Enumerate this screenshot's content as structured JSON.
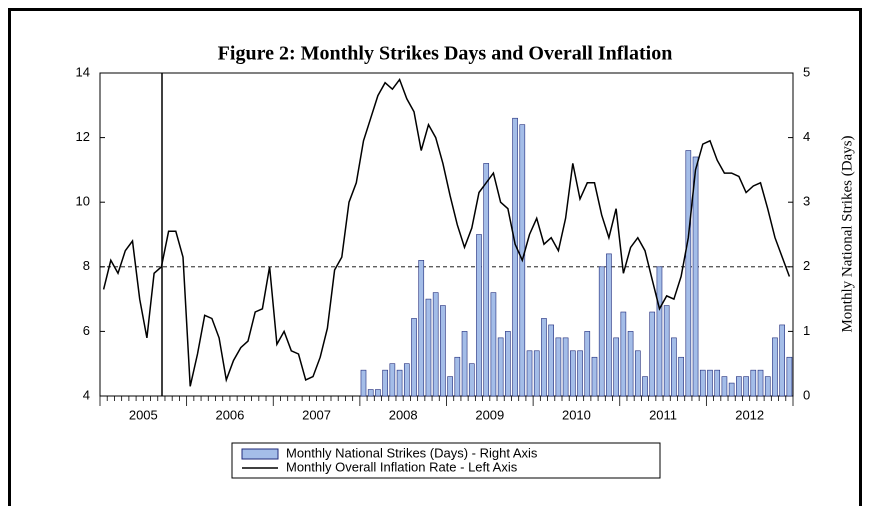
{
  "chart_data": {
    "type": "combo",
    "title": "Figure 2: Monthly Strikes Days and Overall Inflation",
    "y2_label": "Monthly National Strikes (Days)",
    "categories": [
      null,
      null,
      null,
      null,
      null,
      null,
      "2005",
      null,
      null,
      null,
      null,
      null,
      null,
      null,
      null,
      null,
      null,
      null,
      "2006",
      null,
      null,
      null,
      null,
      null,
      null,
      null,
      null,
      null,
      null,
      null,
      "2007",
      null,
      null,
      null,
      null,
      null,
      null,
      null,
      null,
      null,
      null,
      null,
      "2008",
      null,
      null,
      null,
      null,
      null,
      null,
      null,
      null,
      null,
      null,
      null,
      "2009",
      null,
      null,
      null,
      null,
      null,
      null,
      null,
      null,
      null,
      null,
      null,
      "2010",
      null,
      null,
      null,
      null,
      null,
      null,
      null,
      null,
      null,
      null,
      null,
      "2011",
      null,
      null,
      null,
      null,
      null,
      null,
      null,
      null,
      null,
      null,
      null,
      "2012",
      null,
      null,
      null,
      null,
      null
    ],
    "series": [
      {
        "name": "Monthly National Strikes (Days) - Right Axis",
        "type": "bar",
        "axis": "y2",
        "color": "#a4bde8",
        "values": [
          null,
          null,
          null,
          null,
          null,
          null,
          null,
          null,
          null,
          null,
          null,
          null,
          null,
          null,
          null,
          null,
          null,
          null,
          null,
          null,
          null,
          null,
          null,
          null,
          null,
          null,
          null,
          null,
          null,
          null,
          null,
          null,
          null,
          null,
          null,
          null,
          0.4,
          0.1,
          0.1,
          0.4,
          0.5,
          0.4,
          0.5,
          1.2,
          2.1,
          1.5,
          1.6,
          1.4,
          0.3,
          0.6,
          1.0,
          0.5,
          2.5,
          3.6,
          1.6,
          0.9,
          1.0,
          4.3,
          4.2,
          0.7,
          0.7,
          1.2,
          1.1,
          0.9,
          0.9,
          0.7,
          0.7,
          1.0,
          0.6,
          2.0,
          2.2,
          0.9,
          1.3,
          1.0,
          0.7,
          0.3,
          1.3,
          2.0,
          1.4,
          0.9,
          0.6,
          3.8,
          3.7,
          0.4,
          0.4,
          0.4,
          0.3,
          0.2,
          0.3,
          0.3,
          0.4,
          0.4,
          0.3,
          0.9,
          1.1,
          0.6
        ]
      },
      {
        "name": "Monthly Overall Inflation Rate - Left Axis",
        "type": "line",
        "color": "#000000",
        "values": [
          7.3,
          8.2,
          7.8,
          8.5,
          8.8,
          7.0,
          5.8,
          7.8,
          8.0,
          9.1,
          9.1,
          8.3,
          4.3,
          5.3,
          6.5,
          6.4,
          5.8,
          4.5,
          5.1,
          5.5,
          5.7,
          6.6,
          6.7,
          8.0,
          5.6,
          6.0,
          5.4,
          5.3,
          4.5,
          4.6,
          5.2,
          6.1,
          7.9,
          8.3,
          10.0,
          10.6,
          11.9,
          12.6,
          13.3,
          13.7,
          13.5,
          13.8,
          13.2,
          12.8,
          11.6,
          12.4,
          12.0,
          11.2,
          10.2,
          9.3,
          8.6,
          9.2,
          10.3,
          10.6,
          10.9,
          10.0,
          9.8,
          8.7,
          8.2,
          9.0,
          9.5,
          8.7,
          8.9,
          8.5,
          9.5,
          11.2,
          10.1,
          10.6,
          10.6,
          9.6,
          8.9,
          9.8,
          7.8,
          8.6,
          8.9,
          8.5,
          7.6,
          6.7,
          7.1,
          7.0,
          7.7,
          8.9,
          11.0,
          11.8,
          11.9,
          11.3,
          10.9,
          10.9,
          10.8,
          10.3,
          10.5,
          10.6,
          9.8,
          8.9,
          8.3,
          7.7
        ]
      }
    ],
    "ylim": [
      4,
      14
    ],
    "yticks": [
      4,
      6,
      8,
      10,
      12,
      14
    ],
    "y2lim": [
      0,
      5
    ],
    "y2ticks": [
      0,
      1,
      2,
      3,
      4,
      5
    ],
    "reference_line": 8
  }
}
